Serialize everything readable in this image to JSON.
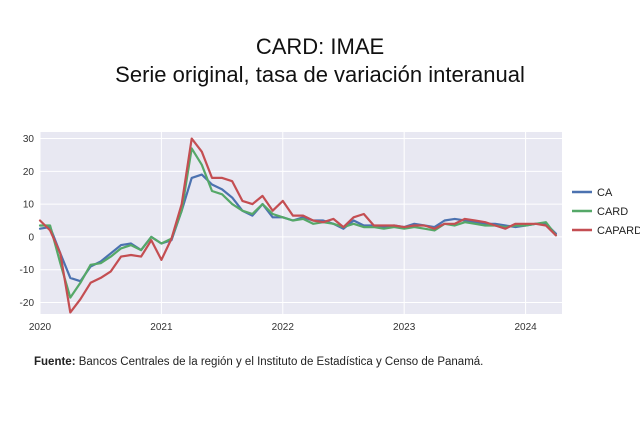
{
  "chart_data": {
    "type": "line",
    "title": "CARD: IMAE",
    "subtitle": "Serie original, tasa de variación interanual",
    "xlabel": "",
    "ylabel": "",
    "x_ticks": [
      "2020",
      "2021",
      "2022",
      "2023",
      "2024"
    ],
    "y_ticks": [
      30,
      20,
      10,
      0,
      -10,
      -20
    ],
    "ylim": [
      -23.5,
      32
    ],
    "xlim": [
      2020.0,
      2024.3
    ],
    "grid": true,
    "background_color": "#e8e8f2",
    "legend_position": "right",
    "x": [
      2020.0,
      2020.083,
      2020.167,
      2020.25,
      2020.333,
      2020.417,
      2020.5,
      2020.583,
      2020.667,
      2020.75,
      2020.833,
      2020.917,
      2021.0,
      2021.083,
      2021.167,
      2021.25,
      2021.333,
      2021.417,
      2021.5,
      2021.583,
      2021.667,
      2021.75,
      2021.833,
      2021.917,
      2022.0,
      2022.083,
      2022.167,
      2022.25,
      2022.333,
      2022.417,
      2022.5,
      2022.583,
      2022.667,
      2022.75,
      2022.833,
      2022.917,
      2023.0,
      2023.083,
      2023.167,
      2023.25,
      2023.333,
      2023.417,
      2023.5,
      2023.583,
      2023.667,
      2023.75,
      2023.833,
      2023.917,
      2024.0,
      2024.083,
      2024.167,
      2024.25
    ],
    "series": [
      {
        "name": "CA",
        "color": "#4c72b0",
        "values": [
          2.5,
          3,
          -5,
          -12.5,
          -13.5,
          -9,
          -7.5,
          -5,
          -2.5,
          -2,
          -4,
          0,
          -2,
          -1,
          8,
          18,
          19,
          16,
          14.5,
          12,
          8,
          6.5,
          10,
          6,
          6,
          5,
          6,
          5,
          5,
          4,
          2.5,
          5,
          3.5,
          3.5,
          3,
          3.5,
          3,
          4,
          3.5,
          3,
          5,
          5.5,
          5,
          4.5,
          4,
          4,
          3.5,
          3,
          3.5,
          4,
          4,
          1
        ]
      },
      {
        "name": "CARD",
        "color": "#55a868",
        "values": [
          3.5,
          3.5,
          -8,
          -18.5,
          -14,
          -8.5,
          -8,
          -6,
          -3.5,
          -2.5,
          -4,
          0,
          -2,
          -0.5,
          8,
          27,
          22,
          14,
          13,
          10,
          8,
          7,
          10,
          7,
          6,
          5,
          5.5,
          4,
          4.5,
          4,
          3,
          4,
          3,
          3,
          2.5,
          3,
          2.5,
          3,
          2.5,
          2,
          4,
          3.5,
          4.5,
          4,
          3.5,
          3.5,
          3,
          3.5,
          3.5,
          4,
          4.5,
          0.5
        ]
      },
      {
        "name": "CAPARD",
        "color": "#c44e52",
        "values": [
          5,
          2,
          -5,
          -23,
          -19,
          -14,
          -12.5,
          -10.5,
          -6,
          -5.5,
          -6,
          -1,
          -7,
          -0.5,
          10,
          30,
          26,
          18,
          18,
          17,
          11,
          10,
          12.5,
          8,
          11,
          6.5,
          6.5,
          5,
          4.5,
          5.5,
          3,
          6,
          7,
          3.5,
          3.5,
          3.5,
          3,
          3.5,
          3.5,
          2.5,
          4,
          4,
          5.5,
          5,
          4.5,
          3.5,
          2.5,
          4,
          4,
          4,
          3.5,
          0.5
        ]
      }
    ]
  },
  "source": {
    "label": "Fuente:",
    "text": " Bancos Centrales de la región y el Instituto de Estadística y Censo de Panamá."
  }
}
